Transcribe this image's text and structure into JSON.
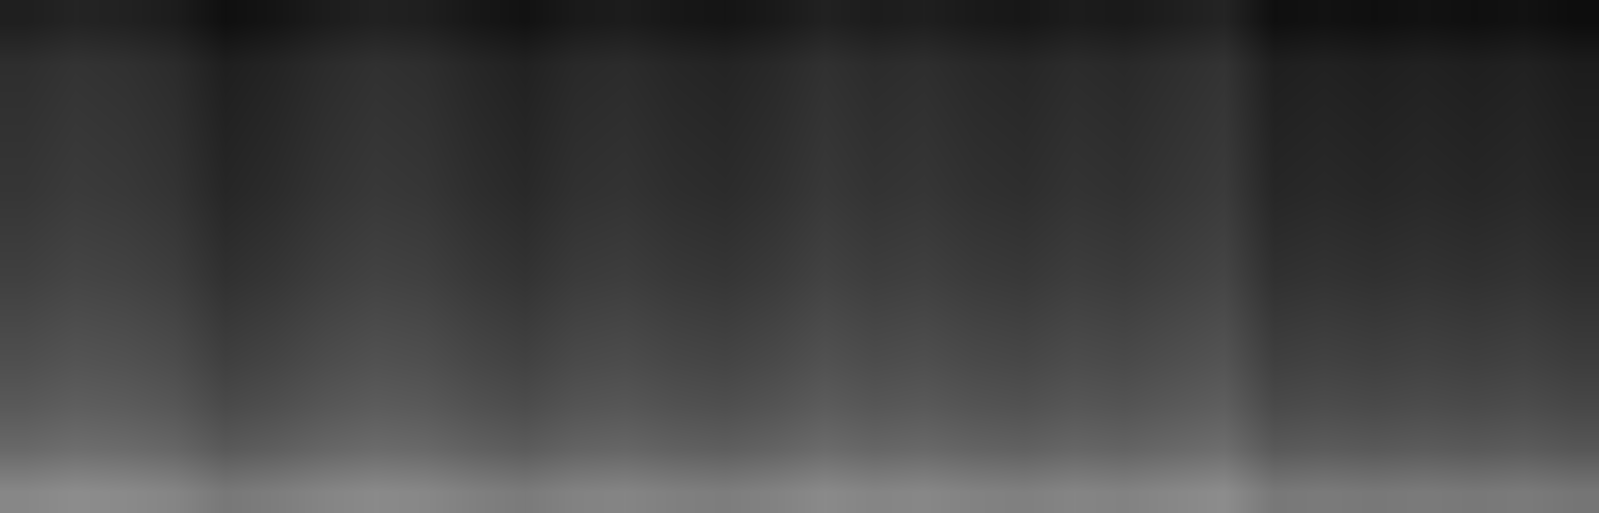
{
  "chart_data": {
    "type": "heatmap",
    "tick_labels": false,
    "zlim": [
      0,
      100
    ],
    "z": [
      [
        53,
        55,
        54,
        52,
        47,
        49,
        52,
        54,
        53,
        50,
        48,
        51,
        52,
        50,
        49,
        51,
        54,
        52,
        53,
        51,
        50,
        52,
        51,
        53,
        55,
        47,
        48,
        47,
        48,
        47,
        48,
        46
      ],
      [
        41,
        43,
        42,
        40,
        35,
        37,
        40,
        42,
        41,
        38,
        36,
        39,
        40,
        38,
        37,
        39,
        42,
        40,
        41,
        39,
        38,
        40,
        39,
        41,
        43,
        35,
        36,
        35,
        36,
        35,
        36,
        34
      ],
      [
        35,
        37,
        36,
        34,
        29,
        31,
        34,
        36,
        35,
        32,
        30,
        33,
        34,
        32,
        31,
        33,
        36,
        34,
        35,
        33,
        32,
        34,
        33,
        35,
        37,
        29,
        30,
        29,
        30,
        29,
        30,
        28
      ],
      [
        31,
        33,
        32,
        30,
        25,
        27,
        30,
        32,
        31,
        28,
        26,
        29,
        30,
        28,
        27,
        29,
        32,
        30,
        31,
        29,
        28,
        30,
        29,
        31,
        33,
        25,
        26,
        25,
        26,
        25,
        26,
        24
      ],
      [
        28,
        30,
        29,
        27,
        22,
        24,
        27,
        29,
        28,
        25,
        23,
        26,
        27,
        25,
        24,
        26,
        29,
        27,
        28,
        26,
        25,
        27,
        26,
        28,
        30,
        22,
        23,
        22,
        23,
        22,
        23,
        21
      ],
      [
        25,
        27,
        26,
        24,
        19,
        21,
        24,
        26,
        25,
        22,
        20,
        23,
        24,
        22,
        21,
        23,
        26,
        24,
        25,
        23,
        22,
        24,
        23,
        25,
        27,
        19,
        20,
        19,
        20,
        19,
        20,
        18
      ],
      [
        23,
        25,
        24,
        22,
        17,
        19,
        22,
        24,
        23,
        20,
        18,
        21,
        22,
        20,
        19,
        21,
        24,
        22,
        23,
        21,
        20,
        22,
        21,
        23,
        25,
        17,
        18,
        17,
        18,
        17,
        18,
        16
      ],
      [
        21,
        23,
        22,
        20,
        15,
        17,
        20,
        22,
        21,
        18,
        16,
        19,
        20,
        18,
        17,
        19,
        22,
        20,
        21,
        19,
        18,
        20,
        19,
        21,
        23,
        15,
        16,
        15,
        16,
        15,
        16,
        14
      ],
      [
        20,
        22,
        21,
        19,
        14,
        16,
        19,
        21,
        20,
        17,
        15,
        18,
        19,
        17,
        16,
        18,
        21,
        19,
        20,
        18,
        17,
        19,
        18,
        20,
        22,
        14,
        15,
        14,
        15,
        14,
        15,
        13
      ],
      [
        19,
        21,
        20,
        18,
        13,
        15,
        18,
        20,
        19,
        16,
        14,
        17,
        18,
        16,
        15,
        17,
        20,
        18,
        19,
        17,
        16,
        18,
        17,
        19,
        21,
        13,
        14,
        13,
        14,
        13,
        14,
        12
      ],
      [
        18,
        20,
        19,
        17,
        12,
        14,
        17,
        19,
        18,
        15,
        13,
        16,
        17,
        15,
        14,
        16,
        19,
        17,
        18,
        16,
        15,
        17,
        16,
        18,
        20,
        12,
        13,
        12,
        13,
        12,
        13,
        11
      ],
      [
        12,
        14,
        13,
        11,
        6,
        8,
        11,
        13,
        12,
        9,
        7,
        10,
        11,
        9,
        8,
        10,
        13,
        11,
        12,
        10,
        9,
        11,
        10,
        12,
        14,
        6,
        7,
        6,
        7,
        6,
        7,
        5
      ]
    ]
  }
}
